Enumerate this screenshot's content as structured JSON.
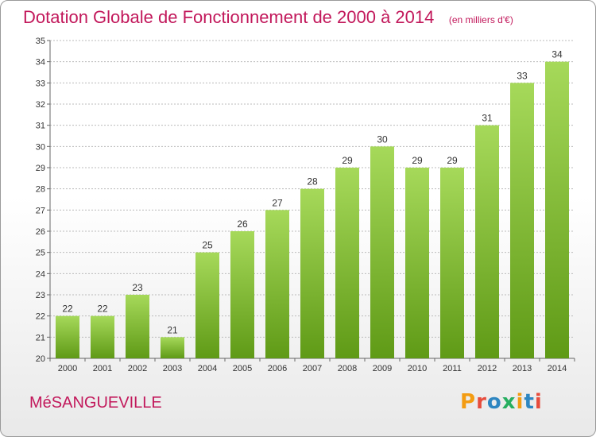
{
  "title": "Dotation Globale de Fonctionnement de 2000 à 2014",
  "subtitle": "(en milliers d'€)",
  "commune": "MéSANGUEVILLE",
  "logo": {
    "text": "Proxiti",
    "colors": [
      "#f39c12",
      "#e74c3c",
      "#2e86c1",
      "#27ae60",
      "#f39c12",
      "#2e86c1",
      "#e74c3c"
    ]
  },
  "colors": {
    "title": "#c2185b",
    "bar_top": "#a6d95a",
    "bar_bottom": "#5f9a16",
    "grid": "#bbbbbb"
  },
  "chart_data": {
    "type": "bar",
    "categories": [
      "2000",
      "2001",
      "2002",
      "2003",
      "2004",
      "2005",
      "2006",
      "2007",
      "2008",
      "2009",
      "2010",
      "2011",
      "2012",
      "2013",
      "2014"
    ],
    "values": [
      22,
      22,
      23,
      21,
      25,
      26,
      27,
      28,
      29,
      30,
      29,
      29,
      31,
      33,
      34
    ],
    "ylim": [
      20,
      35
    ],
    "yticks": [
      20,
      21,
      22,
      23,
      24,
      25,
      26,
      27,
      28,
      29,
      30,
      31,
      32,
      33,
      34,
      35
    ],
    "grid": true,
    "title": "Dotation Globale de Fonctionnement de 2000 à 2014",
    "xlabel": "",
    "ylabel": ""
  }
}
